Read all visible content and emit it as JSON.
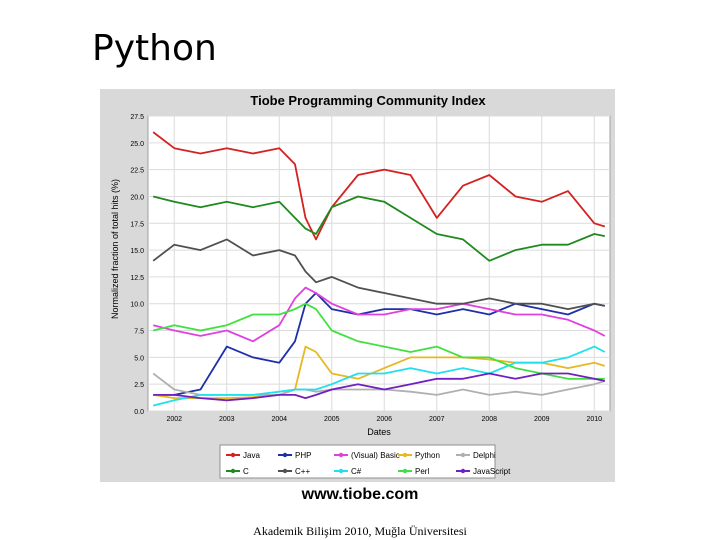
{
  "slide": {
    "title": "Python",
    "url": "www.tiobe.com",
    "footer": "Akademik Bilişim 2010, Muğla Üniversitesi"
  },
  "chart_data": {
    "type": "line",
    "title": "Tiobe Programming Community Index",
    "xlabel": "Dates",
    "ylabel": "Normalized fraction of total hits (%)",
    "xlim": [
      2001.5,
      2010.3
    ],
    "ylim": [
      0,
      27.5
    ],
    "y_ticks": [
      "0.0",
      "2.5",
      "5.0",
      "7.5",
      "10.0",
      "12.5",
      "15.0",
      "17.5",
      "20.0",
      "22.5",
      "25.0",
      "27.5"
    ],
    "x_ticks": [
      "2002",
      "2003",
      "2004",
      "2005",
      "2006",
      "2007",
      "2008",
      "2009",
      "2010"
    ],
    "legend_position": "bottom",
    "x": [
      2001.6,
      2002.0,
      2002.5,
      2003.0,
      2003.5,
      2004.0,
      2004.3,
      2004.5,
      2004.7,
      2005.0,
      2005.5,
      2006.0,
      2006.5,
      2007.0,
      2007.5,
      2008.0,
      2008.5,
      2009.0,
      2009.5,
      2010.0,
      2010.2
    ],
    "series": [
      {
        "name": "Java",
        "color": "#d22222",
        "values": [
          26.0,
          24.5,
          24.0,
          24.5,
          24.0,
          24.5,
          23.0,
          18.0,
          16.0,
          19.0,
          22.0,
          22.5,
          22.0,
          18.0,
          21.0,
          22.0,
          20.0,
          19.5,
          20.5,
          17.5,
          17.2
        ]
      },
      {
        "name": "PHP",
        "color": "#1f2fa8",
        "values": [
          1.5,
          1.5,
          2.0,
          6.0,
          5.0,
          4.5,
          6.5,
          10.0,
          11.0,
          9.5,
          9.0,
          9.5,
          9.5,
          9.0,
          9.5,
          9.0,
          10.0,
          9.5,
          9.0,
          10.0,
          9.8
        ]
      },
      {
        "name": "(Visual) Basic",
        "color": "#e040e0",
        "values": [
          8.0,
          7.5,
          7.0,
          7.5,
          6.5,
          8.0,
          10.5,
          11.5,
          11.0,
          10.0,
          9.0,
          9.0,
          9.5,
          9.5,
          10.0,
          9.5,
          9.0,
          9.0,
          8.5,
          7.5,
          7.0
        ]
      },
      {
        "name": "Python",
        "color": "#e8b820",
        "values": [
          1.5,
          1.2,
          1.2,
          1.2,
          1.3,
          1.5,
          2.0,
          6.0,
          5.5,
          3.5,
          3.0,
          4.0,
          5.0,
          5.0,
          5.0,
          4.8,
          4.5,
          4.5,
          4.0,
          4.5,
          4.2
        ]
      },
      {
        "name": "Delphi",
        "color": "#b0b0b0",
        "values": [
          3.5,
          2.0,
          1.5,
          1.5,
          1.5,
          1.5,
          2.0,
          2.0,
          1.8,
          2.0,
          2.0,
          2.0,
          1.8,
          1.5,
          2.0,
          1.5,
          1.8,
          1.5,
          2.0,
          2.5,
          2.8
        ]
      },
      {
        "name": "C",
        "color": "#20891f",
        "values": [
          20.0,
          19.5,
          19.0,
          19.5,
          19.0,
          19.5,
          18.0,
          17.0,
          16.5,
          19.0,
          20.0,
          19.5,
          18.0,
          16.5,
          16.0,
          14.0,
          15.0,
          15.5,
          15.5,
          16.5,
          16.3
        ]
      },
      {
        "name": "C++",
        "color": "#505050",
        "values": [
          14.0,
          15.5,
          15.0,
          16.0,
          14.5,
          15.0,
          14.5,
          13.0,
          12.0,
          12.5,
          11.5,
          11.0,
          10.5,
          10.0,
          10.0,
          10.5,
          10.0,
          10.0,
          9.5,
          10.0,
          9.8
        ]
      },
      {
        "name": "C#",
        "color": "#20e0ee",
        "values": [
          0.5,
          1.0,
          1.5,
          1.5,
          1.5,
          1.8,
          2.0,
          2.0,
          2.0,
          2.5,
          3.5,
          3.5,
          4.0,
          3.5,
          4.0,
          3.5,
          4.5,
          4.5,
          5.0,
          6.0,
          5.5
        ]
      },
      {
        "name": "Perl",
        "color": "#40e040",
        "values": [
          7.5,
          8.0,
          7.5,
          8.0,
          9.0,
          9.0,
          9.5,
          10.0,
          9.5,
          7.5,
          6.5,
          6.0,
          5.5,
          6.0,
          5.0,
          5.0,
          4.0,
          3.5,
          3.0,
          3.0,
          3.0
        ]
      },
      {
        "name": "JavaScript",
        "color": "#7020c0",
        "values": [
          1.5,
          1.5,
          1.2,
          1.0,
          1.2,
          1.5,
          1.5,
          1.2,
          1.5,
          2.0,
          2.5,
          2.0,
          2.5,
          3.0,
          3.0,
          3.5,
          3.0,
          3.5,
          3.5,
          3.0,
          2.8
        ]
      }
    ]
  }
}
